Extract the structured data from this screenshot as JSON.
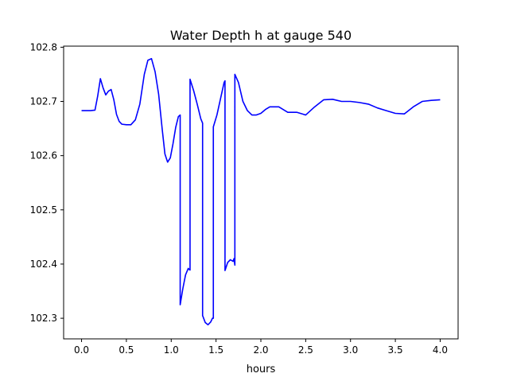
{
  "chart_data": {
    "type": "line",
    "title": "Water Depth h at gauge 540",
    "xlabel": "hours",
    "ylabel": "",
    "xlim": [
      -0.2,
      4.2
    ],
    "ylim": [
      102.262,
      102.802
    ],
    "xticks": [
      "0.0",
      "0.5",
      "1.0",
      "1.5",
      "2.0",
      "2.5",
      "3.0",
      "3.5",
      "4.0"
    ],
    "yticks": [
      "102.3",
      "102.4",
      "102.5",
      "102.6",
      "102.7",
      "102.8"
    ],
    "grid": false,
    "legend": "none",
    "series": [
      {
        "color": "#0000ff",
        "x": [
          0.0,
          0.05,
          0.1,
          0.15,
          0.18,
          0.21,
          0.24,
          0.27,
          0.3,
          0.33,
          0.36,
          0.39,
          0.42,
          0.45,
          0.5,
          0.55,
          0.6,
          0.65,
          0.7,
          0.74,
          0.78,
          0.82,
          0.86,
          0.9,
          0.93,
          0.96,
          0.99,
          1.02,
          1.05,
          1.08,
          1.1,
          1.1,
          1.13,
          1.16,
          1.19,
          1.2,
          1.21,
          1.21,
          1.25,
          1.29,
          1.33,
          1.35,
          1.35,
          1.38,
          1.41,
          1.44,
          1.46,
          1.47,
          1.47,
          1.51,
          1.55,
          1.59,
          1.6,
          1.6,
          1.63,
          1.66,
          1.69,
          1.7,
          1.71,
          1.71,
          1.75,
          1.8,
          1.85,
          1.9,
          1.95,
          2.0,
          2.05,
          2.1,
          2.2,
          2.3,
          2.4,
          2.5,
          2.6,
          2.7,
          2.8,
          2.9,
          3.0,
          3.1,
          3.2,
          3.3,
          3.4,
          3.5,
          3.6,
          3.7,
          3.8,
          3.9,
          4.0
        ],
        "y": [
          102.683,
          102.683,
          102.683,
          102.684,
          102.71,
          102.742,
          102.725,
          102.712,
          102.719,
          102.722,
          102.703,
          102.676,
          102.663,
          102.658,
          102.657,
          102.657,
          102.666,
          102.695,
          102.75,
          102.776,
          102.779,
          102.755,
          102.713,
          102.648,
          102.603,
          102.588,
          102.596,
          102.622,
          102.652,
          102.672,
          102.675,
          102.325,
          102.355,
          102.38,
          102.392,
          102.39,
          102.389,
          102.741,
          102.72,
          102.695,
          102.668,
          102.66,
          102.305,
          102.292,
          102.288,
          102.293,
          102.3,
          102.3,
          102.653,
          102.675,
          102.705,
          102.735,
          102.738,
          102.388,
          102.403,
          102.408,
          102.405,
          102.41,
          102.398,
          102.75,
          102.735,
          102.7,
          102.683,
          102.675,
          102.675,
          102.678,
          102.685,
          102.69,
          102.69,
          102.68,
          102.68,
          102.675,
          102.69,
          102.703,
          102.704,
          102.7,
          102.7,
          102.698,
          102.695,
          102.688,
          102.683,
          102.678,
          102.677,
          102.69,
          102.7,
          102.702,
          102.703
        ]
      }
    ]
  }
}
